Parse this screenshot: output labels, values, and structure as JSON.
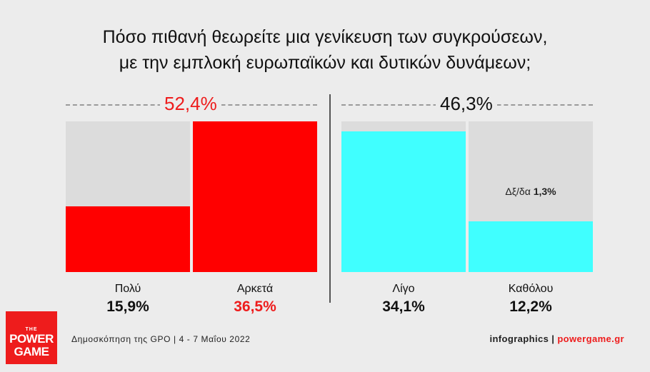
{
  "title": {
    "line1": "Πόσο πιθανή θεωρείτε μια γενίκευση των συγκρούσεων,",
    "line2": "με την εμπλοκή ευρωπαϊκών και δυτικών δυνάμεων;"
  },
  "chart_data": {
    "type": "bar",
    "groups": [
      {
        "total_label": "52,4%",
        "total": 52.4,
        "color": "#ff0000",
        "total_color": "#ee1c1c"
      },
      {
        "total_label": "46,3%",
        "total": 46.3,
        "color": "#40ffff",
        "total_color": "#111111"
      }
    ],
    "categories": [
      "Πολύ",
      "Αρκετά",
      "Λίγο",
      "Καθόλου"
    ],
    "values": [
      15.9,
      36.5,
      34.1,
      12.2
    ],
    "value_labels": [
      "15,9%",
      "36,5%",
      "34,1%",
      "12,2%"
    ],
    "value_colors": [
      "#111111",
      "#ee1c1c",
      "#111111",
      "#111111"
    ],
    "bar_colors": [
      "#ff0000",
      "#ff0000",
      "#40ffff",
      "#40ffff"
    ],
    "ylim": [
      0,
      36.5
    ],
    "undecided": {
      "label": "Δξ/δα",
      "value_label": "1,3%",
      "value": 1.3
    }
  },
  "logo": {
    "the": "THE",
    "line1": "POWER",
    "line2": "GAME"
  },
  "footer": {
    "source": "Δημοσκόπηση της GPO | 4 - 7 Μαΐου 2022",
    "credit": "infographics",
    "separator": "|",
    "site": "powergame.gr"
  },
  "colors": {
    "background": "#ececec",
    "red": "#ff0000",
    "cyan": "#40ffff",
    "track": "#dcdcdc"
  }
}
